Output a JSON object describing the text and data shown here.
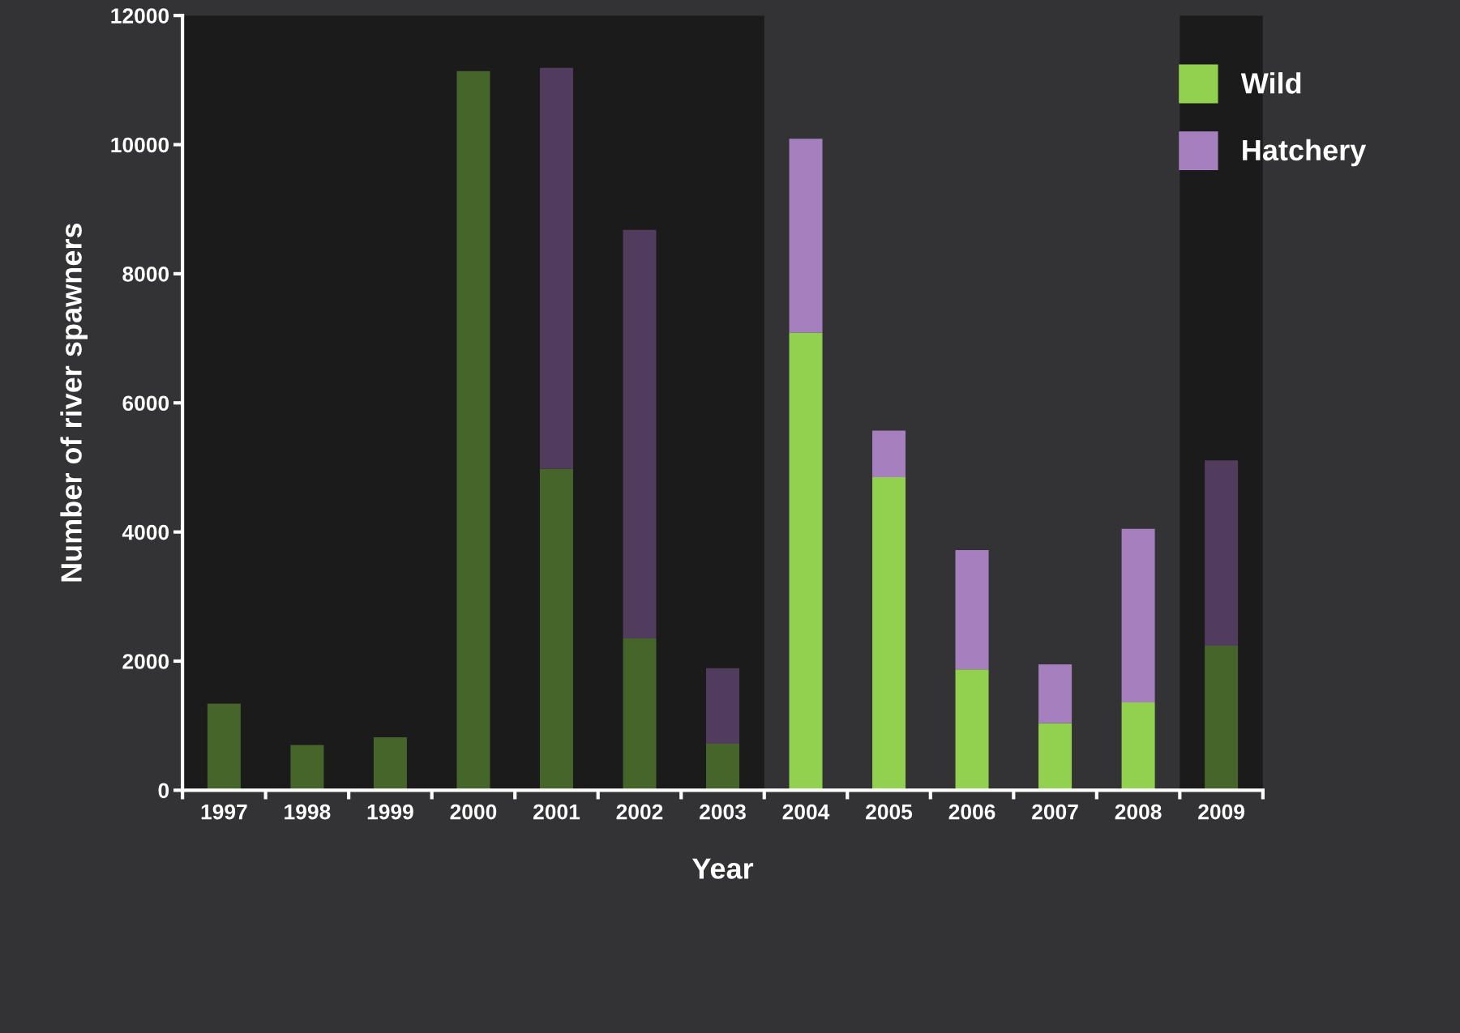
{
  "chart_data": {
    "type": "bar",
    "stacked": true,
    "xlabel": "Year",
    "ylabel": "Number of river spawners",
    "categories": [
      "1997",
      "1998",
      "1999",
      "2000",
      "2001",
      "2002",
      "2003",
      "2004",
      "2005",
      "2006",
      "2007",
      "2008",
      "2009"
    ],
    "series": [
      {
        "name": "Wild",
        "color": "#92d050",
        "colors": [
          "#46652a",
          "#46652a",
          "#46652a",
          "#46652a",
          "#46652a",
          "#46652a",
          "#46652a",
          "#92d050",
          "#92d050",
          "#92d050",
          "#92d050",
          "#92d050",
          "#46652a"
        ],
        "values": [
          1340,
          700,
          820,
          11140,
          4980,
          2350,
          720,
          7090,
          4850,
          1870,
          1040,
          1360,
          2240
        ]
      },
      {
        "name": "Hatchery",
        "color": "#a67fbe",
        "colors": [
          "#523c5e",
          "#523c5e",
          "#523c5e",
          "#523c5e",
          "#523c5e",
          "#523c5e",
          "#523c5e",
          "#a67fbe",
          "#a67fbe",
          "#a67fbe",
          "#a67fbe",
          "#a67fbe",
          "#523c5e"
        ],
        "values": [
          0,
          0,
          0,
          0,
          6210,
          6330,
          1170,
          3000,
          720,
          1850,
          910,
          2690,
          2870
        ]
      }
    ],
    "bands": [
      {
        "axis": "x",
        "from": "1997",
        "to": "2003",
        "color": "#1b1b1b"
      },
      {
        "axis": "x",
        "from": "2009",
        "to": "2009",
        "color": "#1b1b1b"
      }
    ],
    "ylim": [
      0,
      12000
    ],
    "yticks": [
      0,
      2000,
      4000,
      6000,
      8000,
      10000,
      12000
    ],
    "grid": false,
    "legend": "top right"
  }
}
